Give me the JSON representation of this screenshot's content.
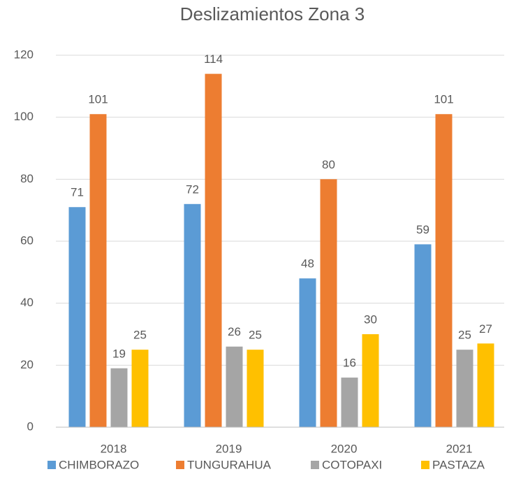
{
  "chart_data": {
    "type": "bar",
    "title": "Deslizamientos  Zona 3",
    "categories": [
      "2018",
      "2019",
      "2020",
      "2021"
    ],
    "series": [
      {
        "name": "CHIMBORAZO",
        "color": "#5b9bd5",
        "values": [
          71,
          72,
          48,
          59
        ]
      },
      {
        "name": "TUNGURAHUA",
        "color": "#ed7d31",
        "values": [
          101,
          114,
          80,
          101
        ]
      },
      {
        "name": "COTOPAXI",
        "color": "#a5a5a5",
        "values": [
          19,
          26,
          16,
          25
        ]
      },
      {
        "name": "PASTAZA",
        "color": "#ffc000",
        "values": [
          25,
          25,
          30,
          27
        ]
      }
    ],
    "ylim": [
      0,
      120
    ],
    "yticks": [
      0,
      20,
      40,
      60,
      80,
      100,
      120
    ],
    "grid": true,
    "legend": "bottom",
    "data_labels": true
  }
}
